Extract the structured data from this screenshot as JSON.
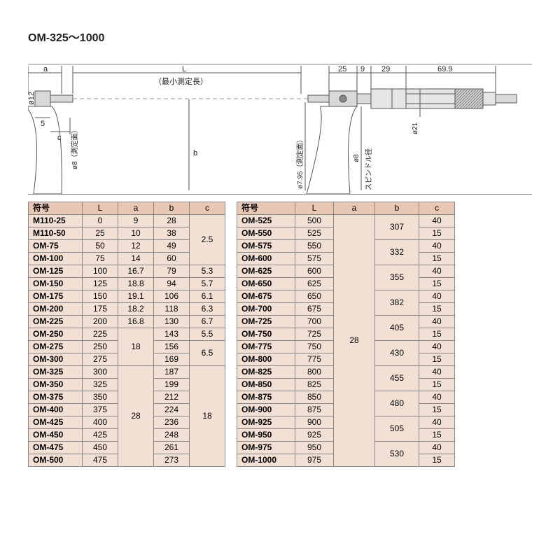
{
  "title": "OM-325～1000",
  "diagram": {
    "labels": {
      "a": "a",
      "L": "L",
      "L_note": "（最小測定長）",
      "b": "b",
      "c": "c",
      "d12": "ø12",
      "d8_left": "ø8（測定面）",
      "d795": "ø7.95（測定面）",
      "d8_spindle": "ø8",
      "spindle_note": "スピンドル径",
      "d21": "ø21",
      "five": "5",
      "dim25": "25",
      "dim9": "9",
      "dim29": "29",
      "dim69_9": "69.9"
    },
    "colors": {
      "stroke": "#555555",
      "light": "#999999",
      "fill_body": "#d9d9d9",
      "fill_knurl": "#bbbbbb"
    }
  },
  "headers": [
    "符号",
    "L",
    "a",
    "b",
    "c"
  ],
  "tableA": {
    "groups": [
      {
        "c": "2.5",
        "rows": [
          {
            "sym": "M110-25",
            "L": "0",
            "a": "9",
            "b": "28"
          },
          {
            "sym": "M110-50",
            "L": "25",
            "a": "10",
            "b": "38"
          },
          {
            "sym": "OM-75",
            "L": "50",
            "a": "12",
            "b": "49"
          },
          {
            "sym": "OM-100",
            "L": "75",
            "a": "14",
            "b": "60"
          }
        ]
      },
      {
        "rows_c": [
          {
            "sym": "OM-125",
            "L": "100",
            "a": "16.7",
            "b": "79",
            "c": "5.3"
          },
          {
            "sym": "OM-150",
            "L": "125",
            "a": "18.8",
            "b": "94",
            "c": "5.7"
          },
          {
            "sym": "OM-175",
            "L": "150",
            "a": "19.1",
            "b": "106",
            "c": "6.1"
          },
          {
            "sym": "OM-200",
            "L": "175",
            "a": "18.2",
            "b": "118",
            "c": "6.3"
          },
          {
            "sym": "OM-225",
            "L": "200",
            "a": "16.8",
            "b": "130",
            "c": "6.7"
          }
        ]
      },
      {
        "a": "18",
        "rows_bc": [
          {
            "sym": "OM-250",
            "L": "225",
            "b": "143",
            "c": "5.5"
          },
          {
            "sym": "OM-275",
            "L": "250",
            "b": "156",
            "c_span": 2,
            "c": "6.5"
          },
          {
            "sym": "OM-300",
            "L": "275",
            "b": "169"
          }
        ]
      },
      {
        "a": "28",
        "c": "18",
        "rows": [
          {
            "sym": "OM-325",
            "L": "300",
            "b": "187"
          },
          {
            "sym": "OM-350",
            "L": "325",
            "b": "199"
          },
          {
            "sym": "OM-375",
            "L": "350",
            "b": "212"
          },
          {
            "sym": "OM-400",
            "L": "375",
            "b": "224"
          },
          {
            "sym": "OM-425",
            "L": "400",
            "b": "236"
          },
          {
            "sym": "OM-450",
            "L": "425",
            "b": "248"
          },
          {
            "sym": "OM-475",
            "L": "450",
            "b": "261"
          },
          {
            "sym": "OM-500",
            "L": "475",
            "b": "273"
          }
        ]
      }
    ]
  },
  "tableB": {
    "a": "28",
    "groups": [
      {
        "b": "307",
        "rows": [
          {
            "sym": "OM-525",
            "L": "500",
            "c": "40"
          },
          {
            "sym": "OM-550",
            "L": "525",
            "c": "15"
          }
        ]
      },
      {
        "b": "332",
        "rows": [
          {
            "sym": "OM-575",
            "L": "550",
            "c": "40"
          },
          {
            "sym": "OM-600",
            "L": "575",
            "c": "15"
          }
        ]
      },
      {
        "b": "355",
        "rows": [
          {
            "sym": "OM-625",
            "L": "600",
            "c": "40"
          },
          {
            "sym": "OM-650",
            "L": "625",
            "c": "15"
          }
        ]
      },
      {
        "b": "382",
        "rows": [
          {
            "sym": "OM-675",
            "L": "650",
            "c": "40"
          },
          {
            "sym": "OM-700",
            "L": "675",
            "c": "15"
          }
        ]
      },
      {
        "b": "405",
        "rows": [
          {
            "sym": "OM-725",
            "L": "700",
            "c": "40"
          },
          {
            "sym": "OM-750",
            "L": "725",
            "c": "15"
          }
        ]
      },
      {
        "b": "430",
        "rows": [
          {
            "sym": "OM-775",
            "L": "750",
            "c": "40"
          },
          {
            "sym": "OM-800",
            "L": "775",
            "c": "15"
          }
        ]
      },
      {
        "b": "455",
        "rows": [
          {
            "sym": "OM-825",
            "L": "800",
            "c": "40"
          },
          {
            "sym": "OM-850",
            "L": "825",
            "c": "15"
          }
        ]
      },
      {
        "b": "480",
        "rows": [
          {
            "sym": "OM-875",
            "L": "850",
            "c": "40"
          },
          {
            "sym": "OM-900",
            "L": "875",
            "c": "15"
          }
        ]
      },
      {
        "b": "505",
        "rows": [
          {
            "sym": "OM-925",
            "L": "900",
            "c": "40"
          },
          {
            "sym": "OM-950",
            "L": "925",
            "c": "15"
          }
        ]
      },
      {
        "b": "530",
        "rows": [
          {
            "sym": "OM-975",
            "L": "950",
            "c": "40"
          },
          {
            "sym": "OM-1000",
            "L": "975",
            "c": "15"
          }
        ]
      }
    ]
  },
  "style": {
    "header_bg": "#e8c7b5",
    "cell_bg": "#f3e0d4",
    "border": "#888888",
    "text": "#222222"
  }
}
